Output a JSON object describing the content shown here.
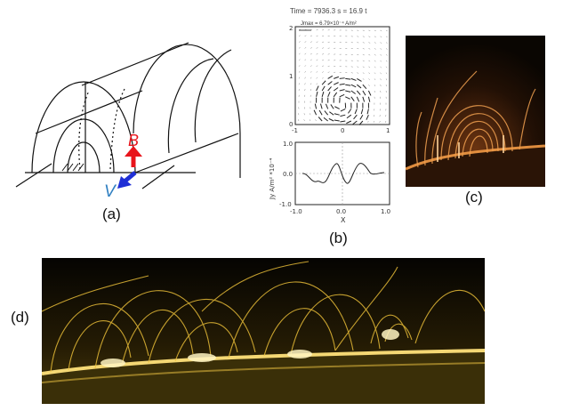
{
  "panels": {
    "a": {
      "label": "(a)",
      "B_label": "B",
      "V_label": "V",
      "B_color": "#e8141b",
      "V_color": "#1f2fd6",
      "V_text_color": "#2f7fc1"
    },
    "b": {
      "label": "(b)",
      "time_caption": "Time = 7936.3  s = 16.9 t",
      "legend_text": "Jmax = 6.79×10⁻⁴ A/m²",
      "top_y_ticks": [
        "2",
        "1",
        "0"
      ],
      "top_x_ticks": [
        "-1",
        "0",
        "1"
      ],
      "bottom_y_ticks": [
        "1.0",
        "0.0",
        "-1.0"
      ],
      "bottom_x_ticks": [
        "-1.0",
        "0.0",
        "1.0"
      ],
      "ylabel": "Jy  A/m²  *10⁻⁴",
      "xlabel": "X"
    },
    "c": {
      "label": "(c)",
      "glow_color": "#e07a2a"
    },
    "d": {
      "label": "(d)",
      "glow_color": "#f2c53a"
    }
  }
}
